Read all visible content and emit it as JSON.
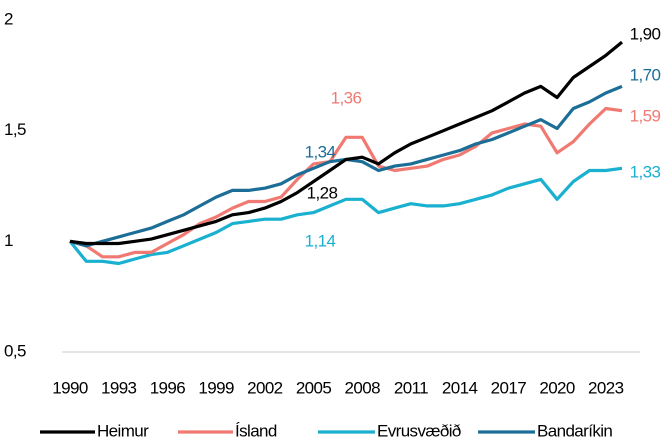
{
  "chart_data": {
    "type": "line",
    "x": [
      1990,
      1991,
      1992,
      1993,
      1994,
      1995,
      1996,
      1997,
      1998,
      1999,
      2000,
      2001,
      2002,
      2003,
      2004,
      2005,
      2006,
      2007,
      2008,
      2009,
      2010,
      2011,
      2012,
      2013,
      2014,
      2015,
      2016,
      2017,
      2018,
      2019,
      2020,
      2021,
      2022,
      2023,
      2024
    ],
    "xlim": [
      1990,
      2024
    ],
    "xticks": [
      1990,
      1993,
      1996,
      1999,
      2002,
      2005,
      2008,
      2011,
      2014,
      2017,
      2020,
      2023
    ],
    "ylim": [
      0.5,
      2
    ],
    "yticks": [
      {
        "value": 0.5,
        "label": "0,5"
      },
      1,
      {
        "value": 1.5,
        "label": "1,5"
      },
      2
    ],
    "grid": false,
    "series": [
      {
        "name": "Heimur",
        "color": "#000000",
        "values": [
          1.0,
          0.99,
          0.99,
          0.99,
          1.0,
          1.01,
          1.03,
          1.05,
          1.07,
          1.09,
          1.12,
          1.13,
          1.15,
          1.18,
          1.22,
          1.27,
          1.32,
          1.37,
          1.38,
          1.35,
          1.4,
          1.44,
          1.47,
          1.5,
          1.53,
          1.56,
          1.59,
          1.63,
          1.67,
          1.7,
          1.65,
          1.74,
          1.79,
          1.84,
          1.9
        ]
      },
      {
        "name": "Ísland",
        "color": "#f07a72",
        "values": [
          1.0,
          0.98,
          0.93,
          0.93,
          0.95,
          0.95,
          0.99,
          1.03,
          1.08,
          1.11,
          1.15,
          1.18,
          1.18,
          1.2,
          1.28,
          1.35,
          1.36,
          1.47,
          1.47,
          1.34,
          1.32,
          1.33,
          1.34,
          1.37,
          1.39,
          1.43,
          1.49,
          1.51,
          1.53,
          1.52,
          1.4,
          1.45,
          1.53,
          1.6,
          1.59
        ]
      },
      {
        "name": "Evrusvæðið",
        "color": "#1ab0d0",
        "values": [
          1.0,
          0.91,
          0.91,
          0.9,
          0.92,
          0.94,
          0.95,
          0.98,
          1.01,
          1.04,
          1.08,
          1.09,
          1.1,
          1.1,
          1.12,
          1.13,
          1.16,
          1.19,
          1.19,
          1.13,
          1.15,
          1.17,
          1.16,
          1.16,
          1.17,
          1.19,
          1.21,
          1.24,
          1.26,
          1.28,
          1.19,
          1.27,
          1.32,
          1.32,
          1.33
        ]
      },
      {
        "name": "Bandaríkin",
        "color": "#1c6e96",
        "values": [
          1.0,
          0.98,
          1.0,
          1.02,
          1.04,
          1.06,
          1.09,
          1.12,
          1.16,
          1.2,
          1.23,
          1.23,
          1.24,
          1.26,
          1.3,
          1.33,
          1.36,
          1.37,
          1.36,
          1.32,
          1.34,
          1.35,
          1.37,
          1.39,
          1.41,
          1.44,
          1.46,
          1.49,
          1.52,
          1.55,
          1.51,
          1.6,
          1.63,
          1.67,
          1.7
        ]
      }
    ],
    "annotations": [
      {
        "text": "1,90",
        "color": "#000000"
      },
      {
        "text": "1,70",
        "color": "#1c6e96"
      },
      {
        "text": "1,59",
        "color": "#f07a72"
      },
      {
        "text": "1,33",
        "color": "#1ab0d0"
      },
      {
        "text": "1,36",
        "color": "#f07a72"
      },
      {
        "text": "1,34",
        "color": "#1c6e96"
      },
      {
        "text": "1,28",
        "color": "#000000"
      },
      {
        "text": "1,14",
        "color": "#1ab0d0"
      }
    ]
  }
}
